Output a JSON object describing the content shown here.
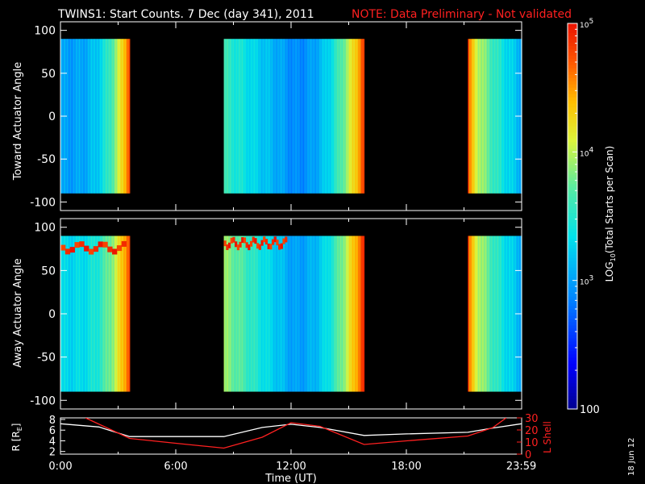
{
  "header": {
    "title": "TWINS1: Start Counts.  7 Dec (day 341), 2011",
    "note": "NOTE: Data Preliminary - Not validated"
  },
  "side_stamp": "18 Jun 12",
  "colors": {
    "background": "#000000",
    "axes": "#ffffff",
    "note": "#ff2020",
    "r_line": "#ffffff",
    "l_line": "#ff2020"
  },
  "chart_data": [
    {
      "type": "heatmap",
      "ylabel": "Toward Actuator Angle",
      "ylim": [
        -110,
        110
      ],
      "yticks": [
        -100,
        -50,
        0,
        50,
        100
      ],
      "y_extent": [
        -90,
        90
      ],
      "xlim": [
        0,
        24
      ],
      "data_blocks": [
        {
          "t0": 0.0,
          "t1": 3.6,
          "start_level": 3.0,
          "end_level": 4.8
        },
        {
          "t0": 8.5,
          "t1": 15.8,
          "start_level": 3.6,
          "mid_level": 2.9,
          "end_level": 4.8
        },
        {
          "t0": 21.2,
          "t1": 24.0,
          "start_level": 4.9,
          "end_level": 3.1
        }
      ]
    },
    {
      "type": "heatmap",
      "ylabel": "Away Actuator Angle",
      "ylim": [
        -110,
        110
      ],
      "yticks": [
        -100,
        -50,
        0,
        50,
        100
      ],
      "y_extent": [
        -90,
        90
      ],
      "xlim": [
        0,
        24
      ],
      "data_blocks": [
        {
          "t0": 0.0,
          "t1": 3.6,
          "start_level": 3.3,
          "end_level": 4.8,
          "band_y": 75
        },
        {
          "t0": 8.5,
          "t1": 15.8,
          "start_level": 3.9,
          "mid_level": 3.0,
          "end_level": 4.9,
          "band_y": 80
        },
        {
          "t0": 21.2,
          "t1": 24.0,
          "start_level": 4.9,
          "end_level": 3.1
        }
      ]
    },
    {
      "type": "line",
      "ylabel_left": "R [R",
      "ylabel_left_sub": "E",
      "ylabel_left_end": "]",
      "ylabel_right": "L Shell",
      "xlabel": "Time (UT)",
      "xlim": [
        0,
        24
      ],
      "xticks": [
        0,
        6,
        12,
        18,
        23.983
      ],
      "xtick_labels": [
        "0:00",
        "6:00",
        "12:00",
        "18:00",
        "23:59"
      ],
      "yleft_lim": [
        1.5,
        8.3
      ],
      "yleft_ticks": [
        2,
        4,
        6,
        8
      ],
      "yright_lim": [
        0,
        30
      ],
      "yright_ticks": [
        0,
        10,
        20,
        30
      ],
      "series": [
        {
          "axis": "left",
          "x": [
            0,
            2,
            3.6,
            6,
            8.5,
            10.5,
            12,
            13.5,
            15.8,
            18,
            21.2,
            22.5,
            24
          ],
          "values": [
            7.2,
            6.6,
            4.8,
            4.8,
            4.8,
            6.5,
            7.1,
            6.5,
            5.0,
            5.3,
            5.6,
            6.4,
            7.2
          ]
        },
        {
          "axis": "right",
          "x": [
            1.3,
            3.6,
            6,
            8.5,
            10.5,
            12,
            13.5,
            15.8,
            18,
            21.2,
            22.5,
            23.2
          ],
          "values": [
            30,
            13,
            9,
            5,
            14,
            26,
            23,
            8,
            11,
            15,
            22,
            30
          ]
        }
      ]
    }
  ],
  "colorbar": {
    "label_log": "LOG",
    "label_sub": "10",
    "label_rest": "(Total Starts per Scan)",
    "log_range": [
      2,
      5
    ],
    "ticks": [
      {
        "level": 5,
        "base": "10",
        "exp": "5"
      },
      {
        "level": 4,
        "base": "10",
        "exp": "4"
      },
      {
        "level": 3,
        "base": "10",
        "exp": "3"
      },
      {
        "level": 2,
        "base": "100",
        "exp": ""
      }
    ]
  }
}
